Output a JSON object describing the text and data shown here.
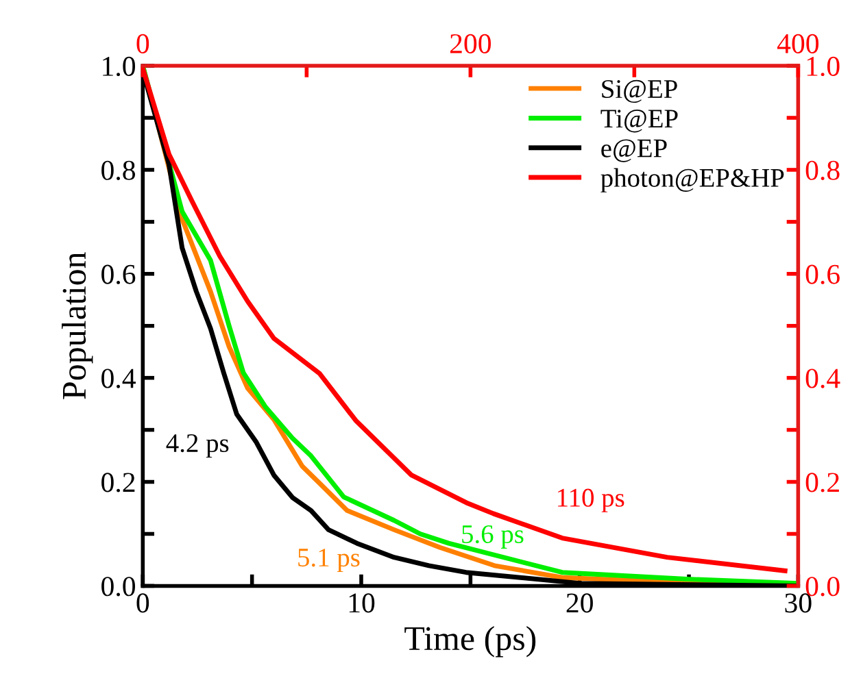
{
  "chart_data": {
    "type": "line",
    "xlabel": "Time (ps)",
    "ylabel": "Population",
    "xlim": [
      0,
      30
    ],
    "xticks": [
      0,
      {
        "value": 5,
        "label": null
      },
      10,
      {
        "value": 15,
        "label": null
      },
      20,
      {
        "value": 25,
        "label": null
      },
      30
    ],
    "ylim": [
      0,
      1
    ],
    "yticks": [
      "0.0",
      {
        "value": 0.1,
        "label": null
      },
      {
        "value": 0.2,
        "label": "0.2"
      },
      {
        "value": 0.3,
        "label": null
      },
      {
        "value": 0.4,
        "label": "0.4"
      },
      {
        "value": 0.5,
        "label": null
      },
      {
        "value": 0.6,
        "label": "0.6"
      },
      {
        "value": 0.7,
        "label": null
      },
      {
        "value": 0.8,
        "label": "0.8"
      },
      {
        "value": 0.9,
        "label": null
      },
      {
        "value": 1,
        "label": "1.0"
      }
    ],
    "x2lim": [
      0,
      400
    ],
    "x2ticks": [
      0,
      {
        "value": 100,
        "label": null
      },
      200,
      {
        "value": 300,
        "label": null
      },
      400
    ],
    "y2lim": [
      0,
      1
    ],
    "y2ticks": [
      {
        "value": 0,
        "label": "0.0"
      },
      {
        "value": 0.1,
        "label": null
      },
      {
        "value": 0.2,
        "label": "0.2"
      },
      {
        "value": 0.3,
        "label": null
      },
      {
        "value": 0.4,
        "label": "0.4"
      },
      {
        "value": 0.5,
        "label": null
      },
      {
        "value": 0.6,
        "label": "0.6"
      },
      {
        "value": 0.7,
        "label": null
      },
      {
        "value": 0.8,
        "label": "0.8"
      },
      {
        "value": 0.9,
        "label": null
      },
      {
        "value": 1,
        "label": "1.0"
      }
    ],
    "legend": "top right",
    "grid": false,
    "marker": "none",
    "line_style": "solid",
    "series": [
      {
        "name": "Si@EP",
        "color": "#ff8000",
        "x": [
          0,
          1.8,
          3.1,
          3.95,
          4.8,
          6.0,
          7.3,
          8.1,
          9.35,
          11.5,
          13.6,
          16.1,
          19.2,
          25,
          30
        ],
        "values": [
          1,
          0.705,
          0.566,
          0.46,
          0.38,
          0.32,
          0.23,
          0.197,
          0.145,
          0.108,
          0.074,
          0.039,
          0.016,
          0.006,
          0.003
        ]
      },
      {
        "name": "Ti@EP",
        "color": "#00ee00",
        "x": [
          0,
          1.8,
          3.1,
          3.95,
          4.6,
          5.6,
          6.85,
          7.7,
          9.2,
          11.5,
          12.7,
          14.0,
          19.2,
          24.9,
          30
        ],
        "values": [
          1,
          0.72,
          0.626,
          0.5,
          0.41,
          0.345,
          0.284,
          0.25,
          0.171,
          0.126,
          0.1,
          0.082,
          0.026,
          0.013,
          0.005
        ]
      },
      {
        "name": "e@EP",
        "color": "#000000",
        "x": [
          0,
          1.2,
          1.8,
          2.45,
          3.1,
          3.7,
          4.3,
          5.2,
          6.0,
          6.85,
          7.7,
          8.5,
          9.8,
          11.5,
          13.1,
          14.8,
          20,
          30
        ],
        "values": [
          0.99,
          0.81,
          0.65,
          0.566,
          0.495,
          0.41,
          0.33,
          0.276,
          0.213,
          0.17,
          0.145,
          0.108,
          0.082,
          0.055,
          0.039,
          0.026,
          0.005,
          0.0
        ]
      },
      {
        "name": "photon@EP&HP",
        "color": "#ff0000",
        "axis": "x2",
        "x": [
          0,
          16,
          30,
          47,
          64,
          80,
          108,
          130,
          164,
          197.5,
          214,
          256,
          320,
          392
        ],
        "values": [
          0.995,
          0.83,
          0.74,
          0.634,
          0.547,
          0.476,
          0.408,
          0.318,
          0.213,
          0.16,
          0.139,
          0.092,
          0.055,
          0.029
        ]
      }
    ],
    "annotations": [
      "4.2 ps",
      "5.1 ps",
      "5.6 ps",
      "110 ps"
    ]
  }
}
